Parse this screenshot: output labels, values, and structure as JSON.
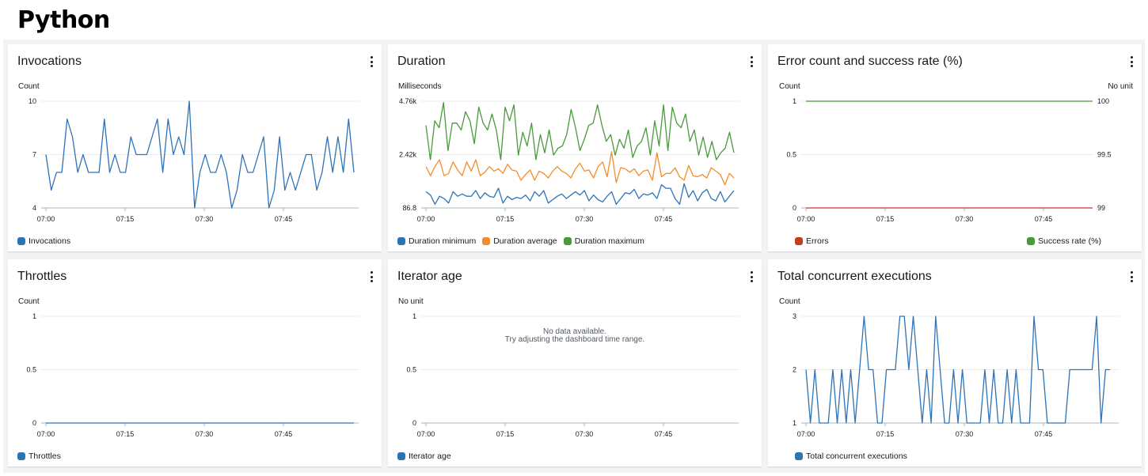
{
  "page": {
    "title": "Python"
  },
  "widgets": {
    "invocations": {
      "title": "Invocations",
      "unit": "Count",
      "y_ticks": [
        "10",
        "7",
        "4"
      ],
      "x_ticks": [
        "07:00",
        "07:15",
        "07:30",
        "07:45"
      ],
      "legend": [
        {
          "label": "Invocations",
          "color": "#2e73b8"
        }
      ]
    },
    "duration": {
      "title": "Duration",
      "unit": "Milliseconds",
      "y_ticks": [
        "4.76k",
        "2.42k",
        "86.8"
      ],
      "x_ticks": [
        "07:00",
        "07:15",
        "07:30",
        "07:45"
      ],
      "legend": [
        {
          "label": "Duration minimum",
          "color": "#2e73b8"
        },
        {
          "label": "Duration average",
          "color": "#f28e2b"
        },
        {
          "label": "Duration maximum",
          "color": "#4a9a3b"
        }
      ]
    },
    "errors": {
      "title": "Error count and success rate (%)",
      "unit_left": "Count",
      "unit_right": "No unit",
      "y_ticks_left": [
        "1",
        "0.5",
        "0"
      ],
      "y_ticks_right": [
        "100",
        "99.5",
        "99"
      ],
      "x_ticks": [
        "07:00",
        "07:15",
        "07:30",
        "07:45"
      ],
      "legend_left": {
        "label": "Errors",
        "color": "#c23b22"
      },
      "legend_right": {
        "label": "Success rate (%)",
        "color": "#4a9a3b"
      }
    },
    "throttles": {
      "title": "Throttles",
      "unit": "Count",
      "y_ticks": [
        "1",
        "0.5",
        "0"
      ],
      "x_ticks": [
        "07:00",
        "07:15",
        "07:30",
        "07:45"
      ],
      "legend": [
        {
          "label": "Throttles",
          "color": "#2e73b8"
        }
      ]
    },
    "iterator_age": {
      "title": "Iterator age",
      "unit": "No unit",
      "y_ticks": [
        "1",
        "0.5",
        "0"
      ],
      "x_ticks": [
        "07:00",
        "07:15",
        "07:30",
        "07:45"
      ],
      "no_data_line1": "No data available.",
      "no_data_line2": "Try adjusting the dashboard time range.",
      "legend": [
        {
          "label": "Iterator age",
          "color": "#2e73b8"
        }
      ]
    },
    "concurrent": {
      "title": "Total concurrent executions",
      "unit": "Count",
      "y_ticks": [
        "3",
        "2",
        "1"
      ],
      "x_ticks": [
        "07:00",
        "07:15",
        "07:30",
        "07:45"
      ],
      "legend": [
        {
          "label": "Total concurrent executions",
          "color": "#2e73b8"
        }
      ]
    }
  },
  "chart_data": [
    {
      "type": "line",
      "title": "Invocations",
      "ylabel": "Count",
      "ylim": [
        4,
        10
      ],
      "x_start": "07:00",
      "x_step_minutes": 1,
      "series": [
        {
          "name": "Invocations",
          "color": "#2e73b8",
          "values": [
            7,
            5,
            6,
            6,
            9,
            8,
            6,
            7,
            6,
            6,
            6,
            9,
            6,
            7,
            6,
            6,
            8,
            7,
            7,
            7,
            8,
            9,
            6,
            9,
            7,
            8,
            7,
            10,
            4,
            6,
            7,
            6,
            6,
            7,
            6,
            4,
            5,
            7,
            6,
            6,
            7,
            8,
            4,
            5,
            8,
            5,
            6,
            5,
            6,
            7,
            7,
            5,
            6,
            8,
            6,
            8,
            6,
            9,
            6
          ]
        }
      ]
    },
    {
      "type": "line",
      "title": "Duration",
      "ylabel": "Milliseconds",
      "ylim": [
        86.8,
        4760
      ],
      "x_start": "07:00",
      "x_step_minutes": 1,
      "series": [
        {
          "name": "Duration minimum",
          "color": "#2e73b8",
          "values": [
            800,
            650,
            250,
            600,
            500,
            300,
            800,
            600,
            700,
            600,
            600,
            850,
            500,
            750,
            600,
            550,
            950,
            300,
            600,
            450,
            550,
            500,
            650,
            400,
            800,
            600,
            850,
            300,
            450,
            600,
            700,
            500,
            650,
            800,
            650,
            850,
            400,
            650,
            450,
            350,
            600,
            800,
            250,
            500,
            750,
            700,
            900,
            500,
            700,
            650,
            750,
            500,
            1100,
            950,
            950,
            500,
            250,
            1150,
            550,
            850,
            400,
            750,
            900,
            500,
            400,
            800,
            350,
            600,
            850
          ]
        },
        {
          "name": "Duration average",
          "color": "#f28e2b",
          "values": [
            1900,
            1500,
            1900,
            2200,
            1500,
            1600,
            2100,
            1750,
            1500,
            2100,
            1700,
            2200,
            1500,
            1650,
            1900,
            1700,
            1800,
            1600,
            2000,
            1750,
            1700,
            1300,
            1550,
            1750,
            1300,
            1700,
            1600,
            1400,
            1700,
            1900,
            1700,
            1600,
            1400,
            1800,
            2050,
            1700,
            1750,
            1400,
            1900,
            2100,
            1450,
            2550,
            1200,
            1850,
            1800,
            1650,
            1800,
            1500,
            1700,
            1750,
            1300,
            2500,
            1450,
            1600,
            1600,
            1850,
            1450,
            1300,
            1950,
            1500,
            1450,
            1550,
            1400,
            1850,
            1700,
            1550,
            1100,
            1600,
            1400
          ]
        },
        {
          "name": "Duration maximum",
          "color": "#4a9a3b",
          "values": [
            3700,
            2200,
            3900,
            3600,
            4700,
            2600,
            3800,
            3800,
            3500,
            4300,
            3900,
            2900,
            4500,
            3800,
            3500,
            4200,
            3500,
            2200,
            4500,
            3900,
            4600,
            2400,
            3400,
            2800,
            3800,
            2200,
            3300,
            2500,
            3500,
            2400,
            2700,
            2800,
            3300,
            4400,
            3600,
            2600,
            3100,
            3700,
            3800,
            4600,
            3700,
            3000,
            3300,
            2400,
            3100,
            2700,
            3500,
            2300,
            2800,
            3000,
            3600,
            2400,
            3900,
            2800,
            4600,
            2600,
            4500,
            3800,
            3600,
            4200,
            3000,
            3500,
            2400,
            3200,
            2300,
            3000,
            2200,
            2500,
            2700,
            3400,
            2500
          ]
        }
      ]
    },
    {
      "type": "line",
      "title": "Error count and success rate (%)",
      "ylabel": "Count",
      "ylim": [
        0,
        1
      ],
      "y2label": "No unit",
      "y2lim": [
        99,
        100
      ],
      "series": [
        {
          "name": "Errors",
          "axis": "left",
          "color": "#c23b22",
          "values": [
            0,
            0
          ]
        },
        {
          "name": "Success rate (%)",
          "axis": "right",
          "color": "#4a9a3b",
          "values": [
            100,
            100
          ]
        }
      ]
    },
    {
      "type": "line",
      "title": "Throttles",
      "ylabel": "Count",
      "ylim": [
        0,
        1
      ],
      "series": [
        {
          "name": "Throttles",
          "color": "#2e73b8",
          "values": [
            0,
            0
          ]
        }
      ]
    },
    {
      "type": "line",
      "title": "Iterator age",
      "ylabel": "No unit",
      "ylim": [
        0,
        1
      ],
      "series": [
        {
          "name": "Iterator age",
          "color": "#2e73b8",
          "values": []
        }
      ]
    },
    {
      "type": "line",
      "title": "Total concurrent executions",
      "ylabel": "Count",
      "ylim": [
        1,
        3
      ],
      "x_start": "07:00",
      "x_step_minutes": 1,
      "series": [
        {
          "name": "Total concurrent executions",
          "color": "#2e73b8",
          "values": [
            2,
            1,
            2,
            1,
            1,
            1,
            2,
            1,
            2,
            1,
            2,
            1,
            2,
            3,
            2,
            2,
            1,
            1,
            2,
            2,
            2,
            3,
            3,
            2,
            3,
            2,
            1,
            2,
            1,
            3,
            2,
            1,
            1,
            2,
            1,
            2,
            1,
            1,
            1,
            1,
            2,
            1,
            2,
            1,
            1,
            2,
            1,
            2,
            1,
            1,
            1,
            3,
            2,
            2,
            1,
            1,
            1,
            1,
            1,
            2,
            2,
            2,
            2,
            2,
            2,
            3,
            1,
            2,
            2
          ]
        }
      ]
    }
  ]
}
